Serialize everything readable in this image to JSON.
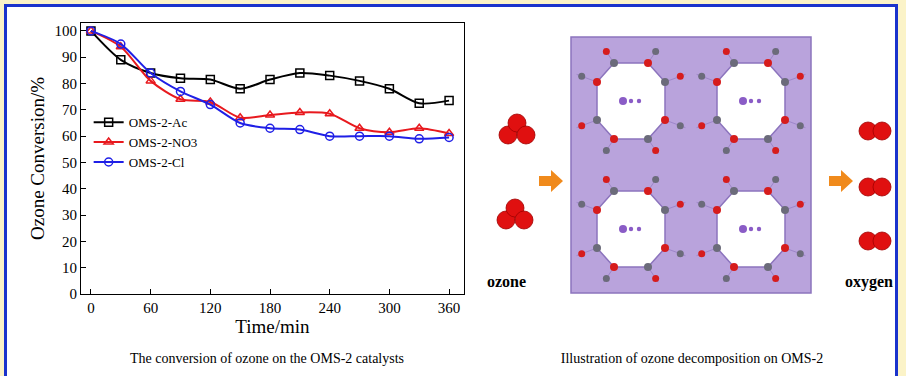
{
  "chart_data": {
    "type": "line",
    "x": [
      0,
      30,
      60,
      90,
      120,
      150,
      180,
      210,
      240,
      270,
      300,
      330,
      360
    ],
    "series": [
      {
        "name": "OMS-2-Ac",
        "color": "#000000",
        "marker": "square",
        "values": [
          100,
          89,
          84,
          82,
          81.5,
          78,
          81.5,
          84,
          83,
          81,
          78,
          72.5,
          73.5
        ]
      },
      {
        "name": "OMS-2-NO3",
        "color": "#e8191e",
        "marker": "triangle",
        "values": [
          100,
          94,
          81,
          74,
          73,
          67,
          68,
          69,
          68.5,
          63,
          61.5,
          63,
          61
        ]
      },
      {
        "name": "OMS-2-Cl",
        "color": "#1f1fe6",
        "marker": "circle",
        "values": [
          100,
          95,
          84,
          77,
          72,
          65,
          63,
          62.5,
          60,
          60,
          60,
          59,
          59.5
        ]
      }
    ],
    "xlabel": "Time/min",
    "ylabel": "Ozone Conversion/%",
    "xlim": [
      -10,
      375
    ],
    "ylim": [
      0,
      103
    ],
    "xticks": [
      0,
      60,
      120,
      180,
      240,
      300,
      360
    ],
    "yticks": [
      0,
      10,
      20,
      30,
      40,
      50,
      60,
      70,
      80,
      90,
      100
    ],
    "grid": false,
    "legend": "center left"
  },
  "captions": {
    "chart": "The conversion of ozone on the OMS-2 catalysts",
    "illustration": "Illustration of ozone decomposition on OMS-2"
  },
  "illustration": {
    "reactant": "ozone",
    "product": "oxygen"
  }
}
